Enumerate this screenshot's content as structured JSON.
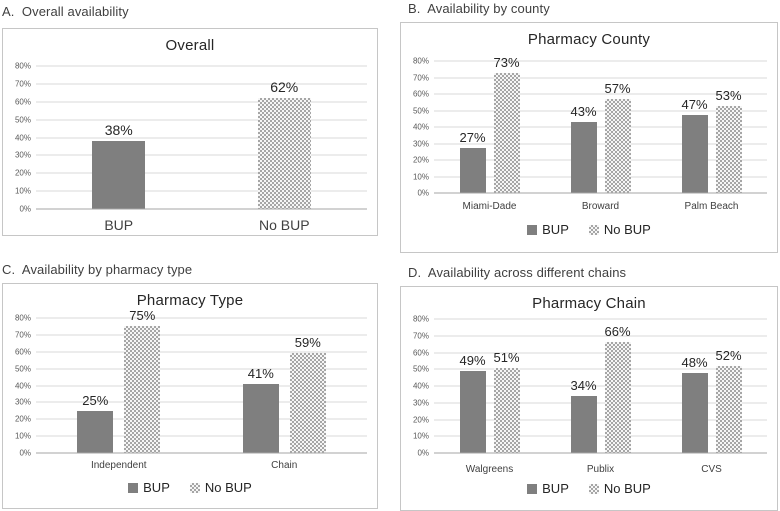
{
  "panels": [
    {
      "heading": "A.  Overall availability"
    },
    {
      "heading": "B.  Availability by county"
    },
    {
      "heading": "C.  Availability by pharmacy type"
    },
    {
      "heading": "D.  Availability across different chains"
    }
  ],
  "chart_data": [
    {
      "type": "bar",
      "title": "Overall",
      "categories": [
        "BUP",
        "No BUP"
      ],
      "values": [
        38,
        62
      ],
      "bar_styles": [
        "solid",
        "pattern"
      ],
      "value_labels": [
        "38%",
        "62%"
      ],
      "ylim": [
        0,
        80
      ],
      "ytick_step": 10,
      "ytick_format": "percent",
      "grid": true,
      "legend_position": "none"
    },
    {
      "type": "bar",
      "title": "Pharmacy County",
      "categories": [
        "Miami-Dade",
        "Broward",
        "Palm Beach"
      ],
      "series": [
        {
          "name": "BUP",
          "style": "solid",
          "values": [
            27,
            43,
            47
          ]
        },
        {
          "name": "No BUP",
          "style": "pattern",
          "values": [
            73,
            57,
            53
          ]
        }
      ],
      "ylim": [
        0,
        80
      ],
      "ytick_step": 10,
      "ytick_format": "percent",
      "grid": true,
      "legend_position": "bottom"
    },
    {
      "type": "bar",
      "title": "Pharmacy Type",
      "categories": [
        "Independent",
        "Chain"
      ],
      "series": [
        {
          "name": "BUP",
          "style": "solid",
          "values": [
            25,
            41
          ]
        },
        {
          "name": "No BUP",
          "style": "pattern",
          "values": [
            75,
            59
          ]
        }
      ],
      "ylim": [
        0,
        80
      ],
      "ytick_step": 10,
      "ytick_format": "percent",
      "grid": true,
      "legend_position": "bottom"
    },
    {
      "type": "bar",
      "title": "Pharmacy Chain",
      "categories": [
        "Walgreens",
        "Publix",
        "CVS"
      ],
      "series": [
        {
          "name": "BUP",
          "style": "solid",
          "values": [
            49,
            34,
            48
          ]
        },
        {
          "name": "No BUP",
          "style": "pattern",
          "values": [
            51,
            66,
            52
          ]
        }
      ],
      "ylim": [
        0,
        80
      ],
      "ytick_step": 10,
      "ytick_format": "percent",
      "grid": true,
      "legend_position": "bottom"
    }
  ],
  "colors": {
    "bar_solid": "#7f7f7f",
    "pattern_dot": "#a6a6a6",
    "pattern_bg": "#f6f6f6",
    "gridline": "#d9d9d9",
    "axis_line": "#a6a6a6",
    "border": "#c6c6c6",
    "title_text": "#262626",
    "heading_text": "#404040",
    "tick_text": "#595959",
    "category_text": "#404040",
    "value_label_text": "#262626"
  }
}
